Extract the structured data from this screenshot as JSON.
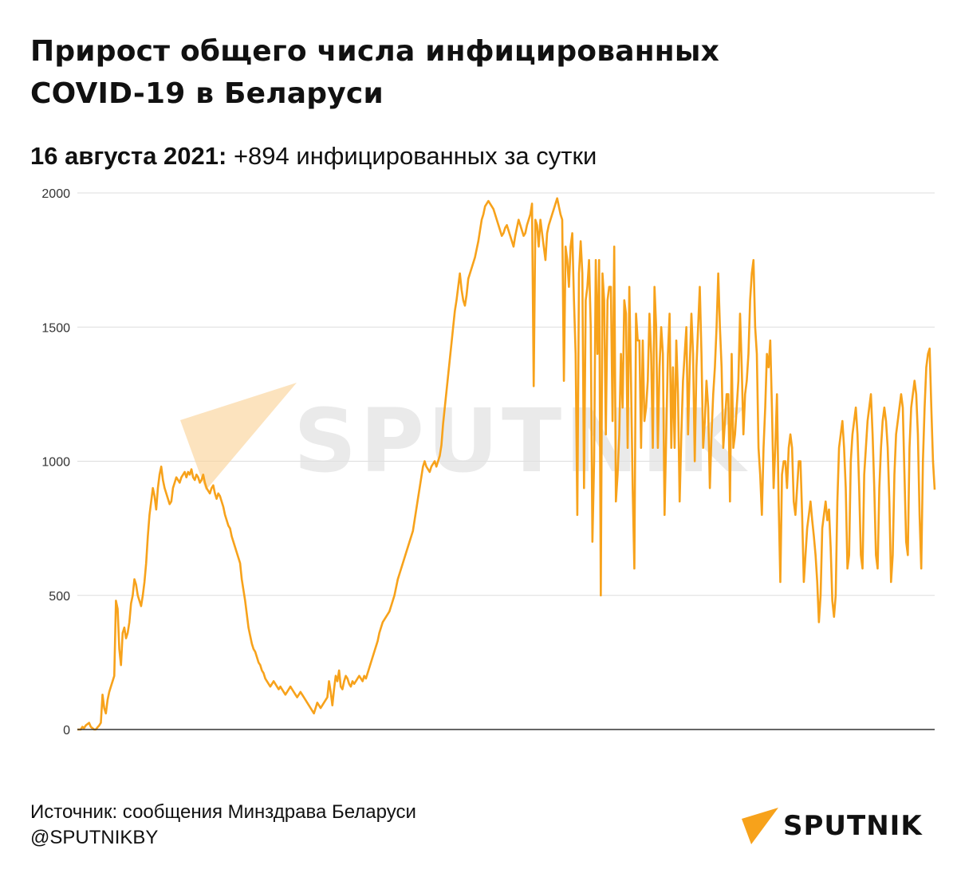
{
  "header": {
    "title_line1": "Прирост общего числа инфицированных",
    "title_line2": "COVID-19 в Беларуси",
    "subtitle_date": "16 августа 2021:",
    "subtitle_text": " +894 инфицированных за сутки"
  },
  "watermark": {
    "text": "SPUTNIK"
  },
  "footer": {
    "source": "Источник: сообщения Минздрава Беларуси",
    "handle": "@SPUTNIKBY"
  },
  "brand": {
    "name": "SPUTNIK"
  },
  "colors": {
    "line": "#f7a21b",
    "grid": "#dddddd",
    "axis": "#333333",
    "logo": "#f7a21b"
  },
  "chart_data": {
    "type": "line",
    "grid": true,
    "legend": "none",
    "ylim": [
      0,
      2000
    ],
    "yticks": [
      0,
      500,
      1000,
      1500,
      2000
    ],
    "series": [
      {
        "values": [
          0,
          0,
          0,
          10,
          5,
          15,
          20,
          25,
          10,
          5,
          0,
          0,
          8,
          15,
          25,
          130,
          80,
          60,
          110,
          140,
          160,
          180,
          200,
          480,
          450,
          300,
          240,
          360,
          380,
          340,
          360,
          400,
          470,
          500,
          560,
          540,
          500,
          480,
          460,
          500,
          550,
          620,
          720,
          800,
          850,
          900,
          870,
          820,
          900,
          950,
          980,
          930,
          900,
          880,
          860,
          840,
          850,
          900,
          920,
          940,
          930,
          920,
          940,
          950,
          960,
          940,
          960,
          950,
          970,
          940,
          930,
          950,
          940,
          920,
          930,
          950,
          920,
          900,
          890,
          880,
          900,
          910,
          880,
          860,
          880,
          870,
          850,
          830,
          800,
          780,
          760,
          750,
          720,
          700,
          680,
          660,
          640,
          620,
          560,
          520,
          480,
          430,
          380,
          350,
          320,
          300,
          290,
          270,
          250,
          240,
          220,
          210,
          190,
          180,
          170,
          160,
          170,
          180,
          170,
          160,
          150,
          160,
          150,
          140,
          130,
          140,
          150,
          160,
          150,
          140,
          130,
          120,
          130,
          140,
          130,
          120,
          110,
          100,
          90,
          80,
          70,
          60,
          80,
          100,
          90,
          80,
          90,
          100,
          110,
          120,
          180,
          140,
          90,
          150,
          200,
          180,
          220,
          160,
          150,
          180,
          200,
          190,
          170,
          160,
          180,
          170,
          180,
          190,
          200,
          190,
          180,
          200,
          190,
          210,
          230,
          250,
          270,
          290,
          310,
          330,
          360,
          380,
          400,
          410,
          420,
          430,
          440,
          460,
          480,
          500,
          530,
          560,
          580,
          600,
          620,
          640,
          660,
          680,
          700,
          720,
          740,
          780,
          820,
          860,
          900,
          940,
          980,
          1000,
          980,
          970,
          960,
          980,
          990,
          1000,
          980,
          1000,
          1020,
          1060,
          1140,
          1200,
          1260,
          1320,
          1380,
          1440,
          1500,
          1560,
          1600,
          1650,
          1700,
          1640,
          1600,
          1580,
          1620,
          1680,
          1700,
          1720,
          1740,
          1760,
          1790,
          1820,
          1860,
          1900,
          1920,
          1950,
          1960,
          1970,
          1960,
          1950,
          1940,
          1920,
          1900,
          1880,
          1860,
          1840,
          1850,
          1870,
          1880,
          1860,
          1840,
          1820,
          1800,
          1840,
          1870,
          1900,
          1880,
          1860,
          1840,
          1850,
          1880,
          1900,
          1920,
          1960,
          1280,
          1900,
          1880,
          1800,
          1900,
          1850,
          1800,
          1750,
          1850,
          1880,
          1900,
          1920,
          1940,
          1960,
          1980,
          1950,
          1920,
          1900,
          1300,
          1800,
          1750,
          1650,
          1800,
          1850,
          1600,
          1400,
          800,
          1700,
          1820,
          1700,
          900,
          1600,
          1650,
          1750,
          1500,
          700,
          1000,
          1750,
          1400,
          1750,
          500,
          1700,
          1600,
          1100,
          1600,
          1650,
          1650,
          1150,
          1800,
          850,
          950,
          1100,
          1400,
          1200,
          1600,
          1550,
          1050,
          1650,
          1300,
          900,
          600,
          1550,
          1450,
          1450,
          1050,
          1450,
          1150,
          1200,
          1300,
          1550,
          1400,
          1050,
          1650,
          1500,
          1050,
          1350,
          1500,
          1400,
          800,
          1100,
          1400,
          1550,
          1050,
          1350,
          1050,
          1450,
          1250,
          850,
          1100,
          1300,
          1400,
          1500,
          1100,
          1350,
          1550,
          1400,
          1000,
          1350,
          1500,
          1650,
          1400,
          1050,
          1150,
          1300,
          1200,
          900,
          1100,
          1250,
          1350,
          1500,
          1700,
          1500,
          1350,
          1050,
          1150,
          1250,
          1250,
          850,
          1400,
          1050,
          1100,
          1200,
          1300,
          1550,
          1350,
          1100,
          1250,
          1300,
          1400,
          1600,
          1700,
          1750,
          1500,
          1400,
          1050,
          950,
          800,
          1050,
          1200,
          1400,
          1350,
          1450,
          1200,
          900,
          1050,
          1250,
          850,
          550,
          950,
          1000,
          1000,
          900,
          1050,
          1100,
          1050,
          850,
          800,
          900,
          1000,
          1000,
          800,
          550,
          650,
          750,
          800,
          850,
          780,
          720,
          650,
          550,
          400,
          500,
          750,
          800,
          850,
          780,
          820,
          680,
          480,
          420,
          500,
          850,
          1050,
          1100,
          1150,
          1050,
          900,
          600,
          650,
          1000,
          1100,
          1150,
          1200,
          1100,
          900,
          650,
          600,
          950,
          1050,
          1150,
          1200,
          1250,
          1100,
          900,
          650,
          600,
          900,
          1050,
          1150,
          1200,
          1150,
          1050,
          850,
          550,
          650,
          950,
          1100,
          1150,
          1200,
          1250,
          1200,
          950,
          700,
          650,
          1050,
          1200,
          1250,
          1300,
          1250,
          1100,
          800,
          600,
          1000,
          1200,
          1350,
          1400,
          1420,
          1200,
          1000,
          894
        ],
        "color_key": "line"
      }
    ]
  }
}
